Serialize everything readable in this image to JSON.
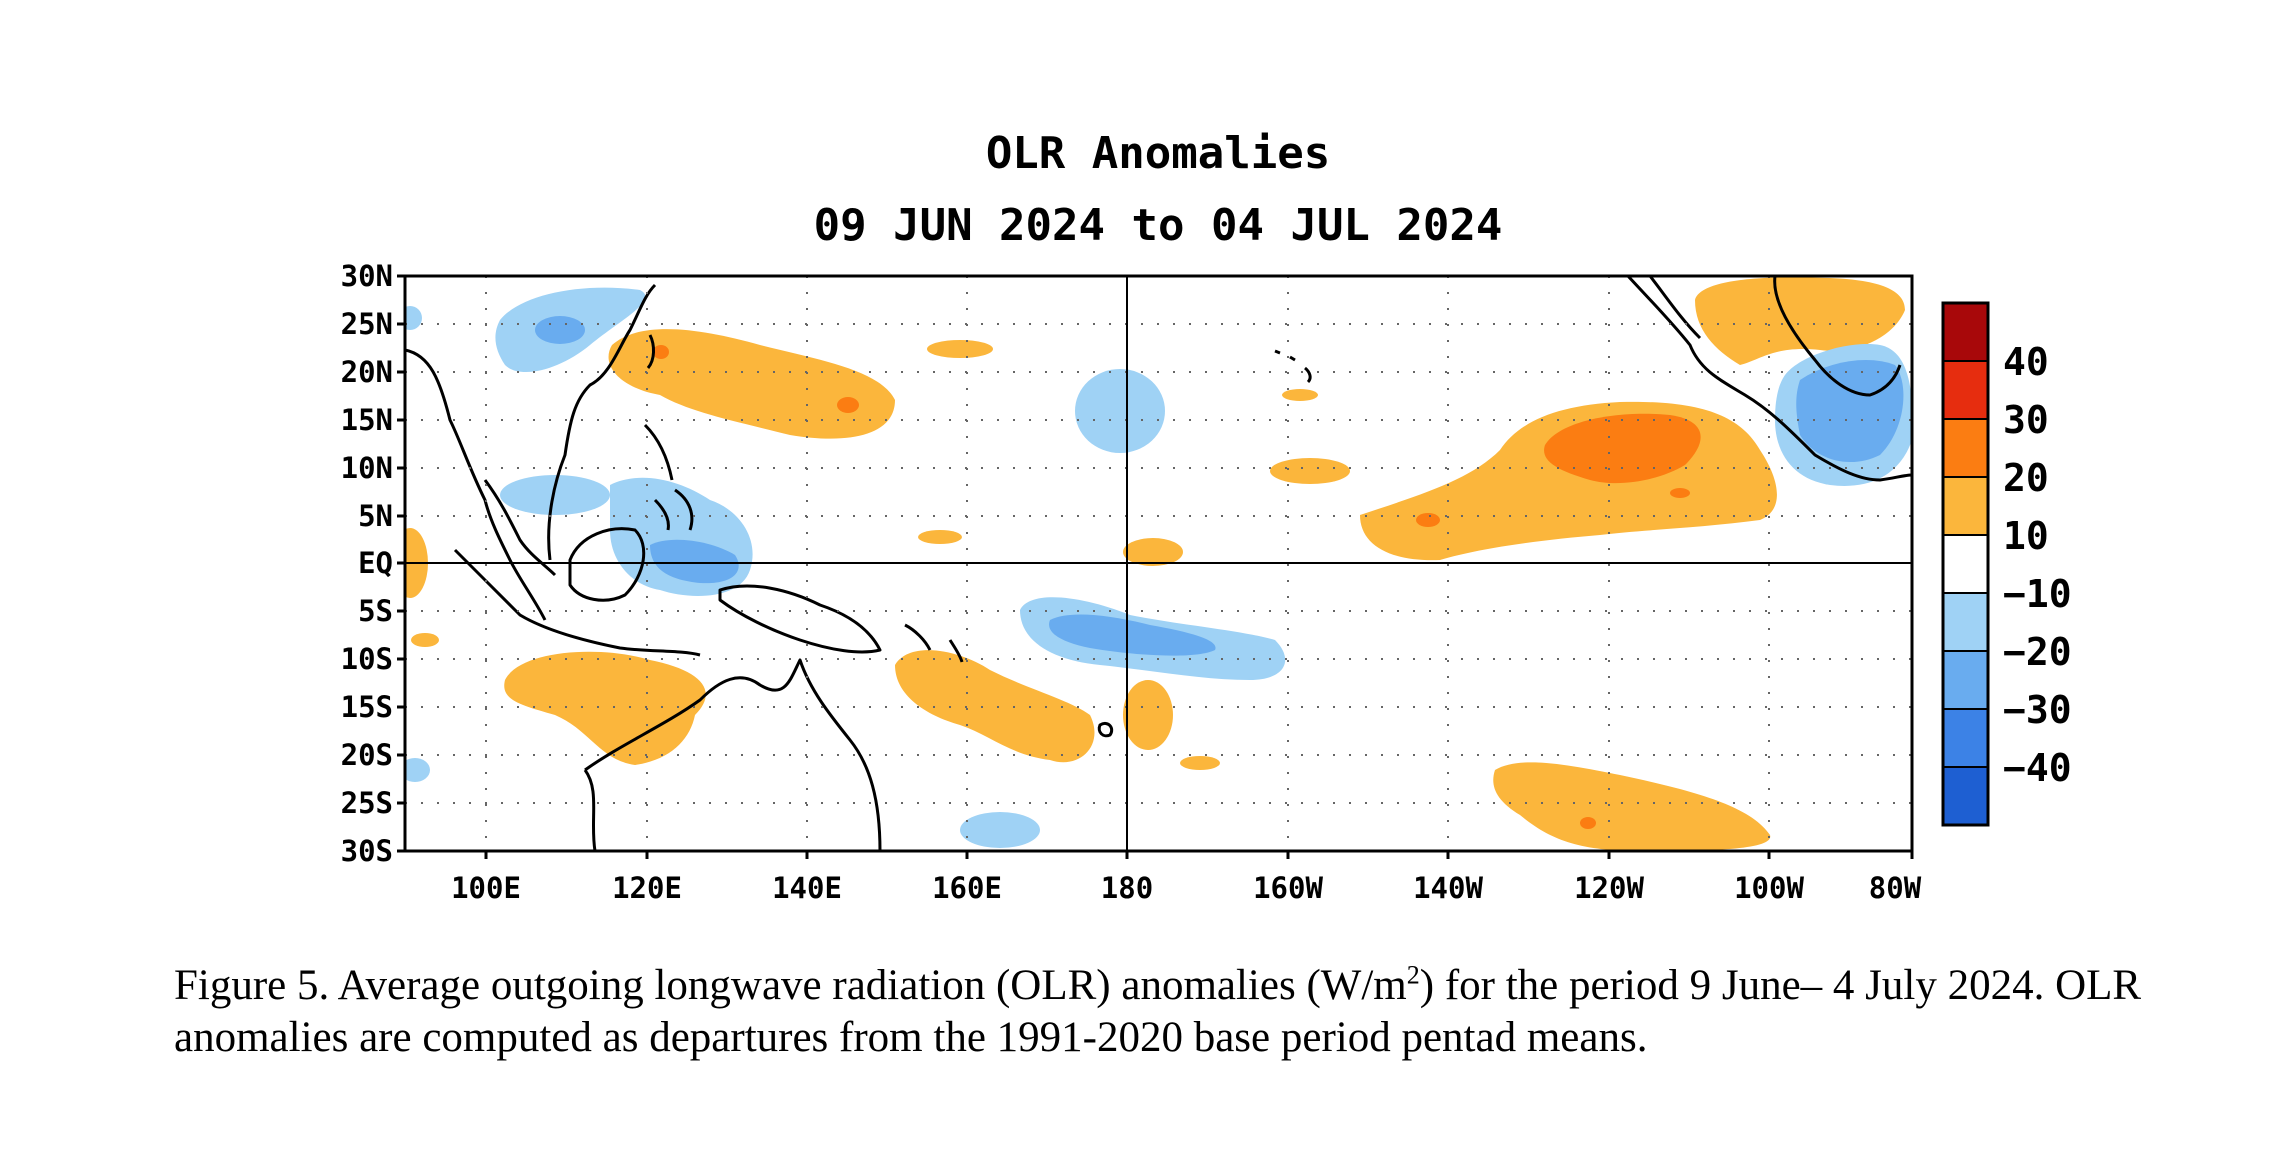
{
  "map": {
    "title_line1": "OLR Anomalies",
    "title_line2": "09 JUN 2024 to 04 JUL 2024",
    "lat_labels": [
      "30N",
      "25N",
      "20N",
      "15N",
      "10N",
      "5N",
      "EQ",
      "5S",
      "10S",
      "15S",
      "20S",
      "25S",
      "30S"
    ],
    "lon_labels": [
      "100E",
      "120E",
      "140E",
      "160E",
      "180",
      "160W",
      "140W",
      "120W",
      "100W",
      "80W"
    ],
    "colors": {
      "pos10": "#fbb63c",
      "pos20": "#fb7d12",
      "pos30": "#e62d0f",
      "pos40": "#a8080a",
      "neg10": "#9fd2f5",
      "neg20": "#69acef",
      "neg30": "#3c82e6",
      "neg40": "#1e5fd2"
    }
  },
  "colorbar": {
    "labels": [
      "40",
      "30",
      "20",
      "10",
      "−10",
      "−20",
      "−30",
      "−40"
    ],
    "colors": [
      "#a8080a",
      "#e62d0f",
      "#fb7d12",
      "#fbb63c",
      "#ffffff",
      "#9fd2f5",
      "#69acef",
      "#3c82e6",
      "#1e5fd2"
    ]
  },
  "caption": {
    "part1": "Figure 5. Average outgoing longwave radiation (OLR) anomalies (W/m",
    "sup": "2",
    "part2": ") for the period 9 June– 4 July 2024.  OLR anomalies are computed as departures from the 1991-2020 base period pentad means."
  }
}
